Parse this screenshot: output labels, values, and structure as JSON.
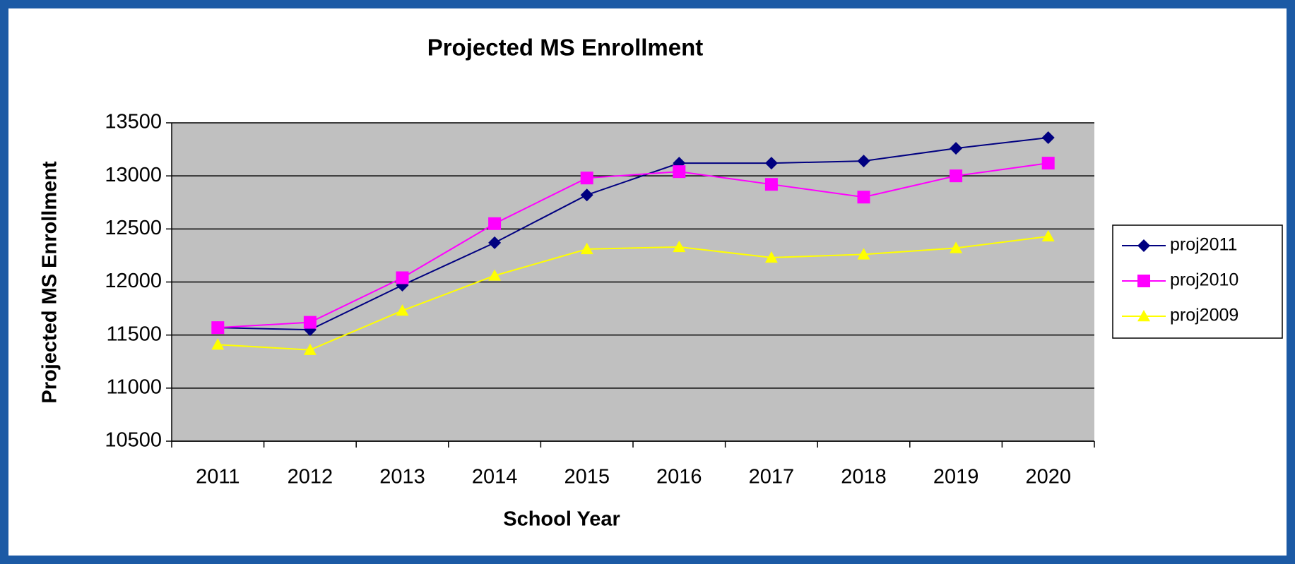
{
  "chart_data": {
    "type": "line",
    "title": "Projected MS Enrollment",
    "x_label": "School Year",
    "y_label": "Projected MS Enrollment",
    "categories": [
      "2011",
      "2012",
      "2013",
      "2014",
      "2015",
      "2016",
      "2017",
      "2018",
      "2019",
      "2020"
    ],
    "series": [
      {
        "name": "proj2011",
        "color": "#000080",
        "marker": "diamond",
        "values": [
          11570,
          11550,
          11970,
          12370,
          12820,
          13120,
          13120,
          13140,
          13260,
          13360
        ]
      },
      {
        "name": "proj2010",
        "color": "#ff00ff",
        "marker": "square",
        "values": [
          11570,
          11620,
          12040,
          12550,
          12980,
          13040,
          12920,
          12800,
          13000,
          13120
        ]
      },
      {
        "name": "proj2009",
        "color": "#ffff00",
        "marker": "triangle",
        "values": [
          11410,
          11360,
          11730,
          12060,
          12310,
          12330,
          12230,
          12260,
          12320,
          12430
        ]
      }
    ],
    "ylim": [
      10500,
      13500
    ],
    "yticks": [
      10500,
      11000,
      11500,
      12000,
      12500,
      13000,
      13500
    ],
    "grid": true,
    "legend": "right"
  }
}
